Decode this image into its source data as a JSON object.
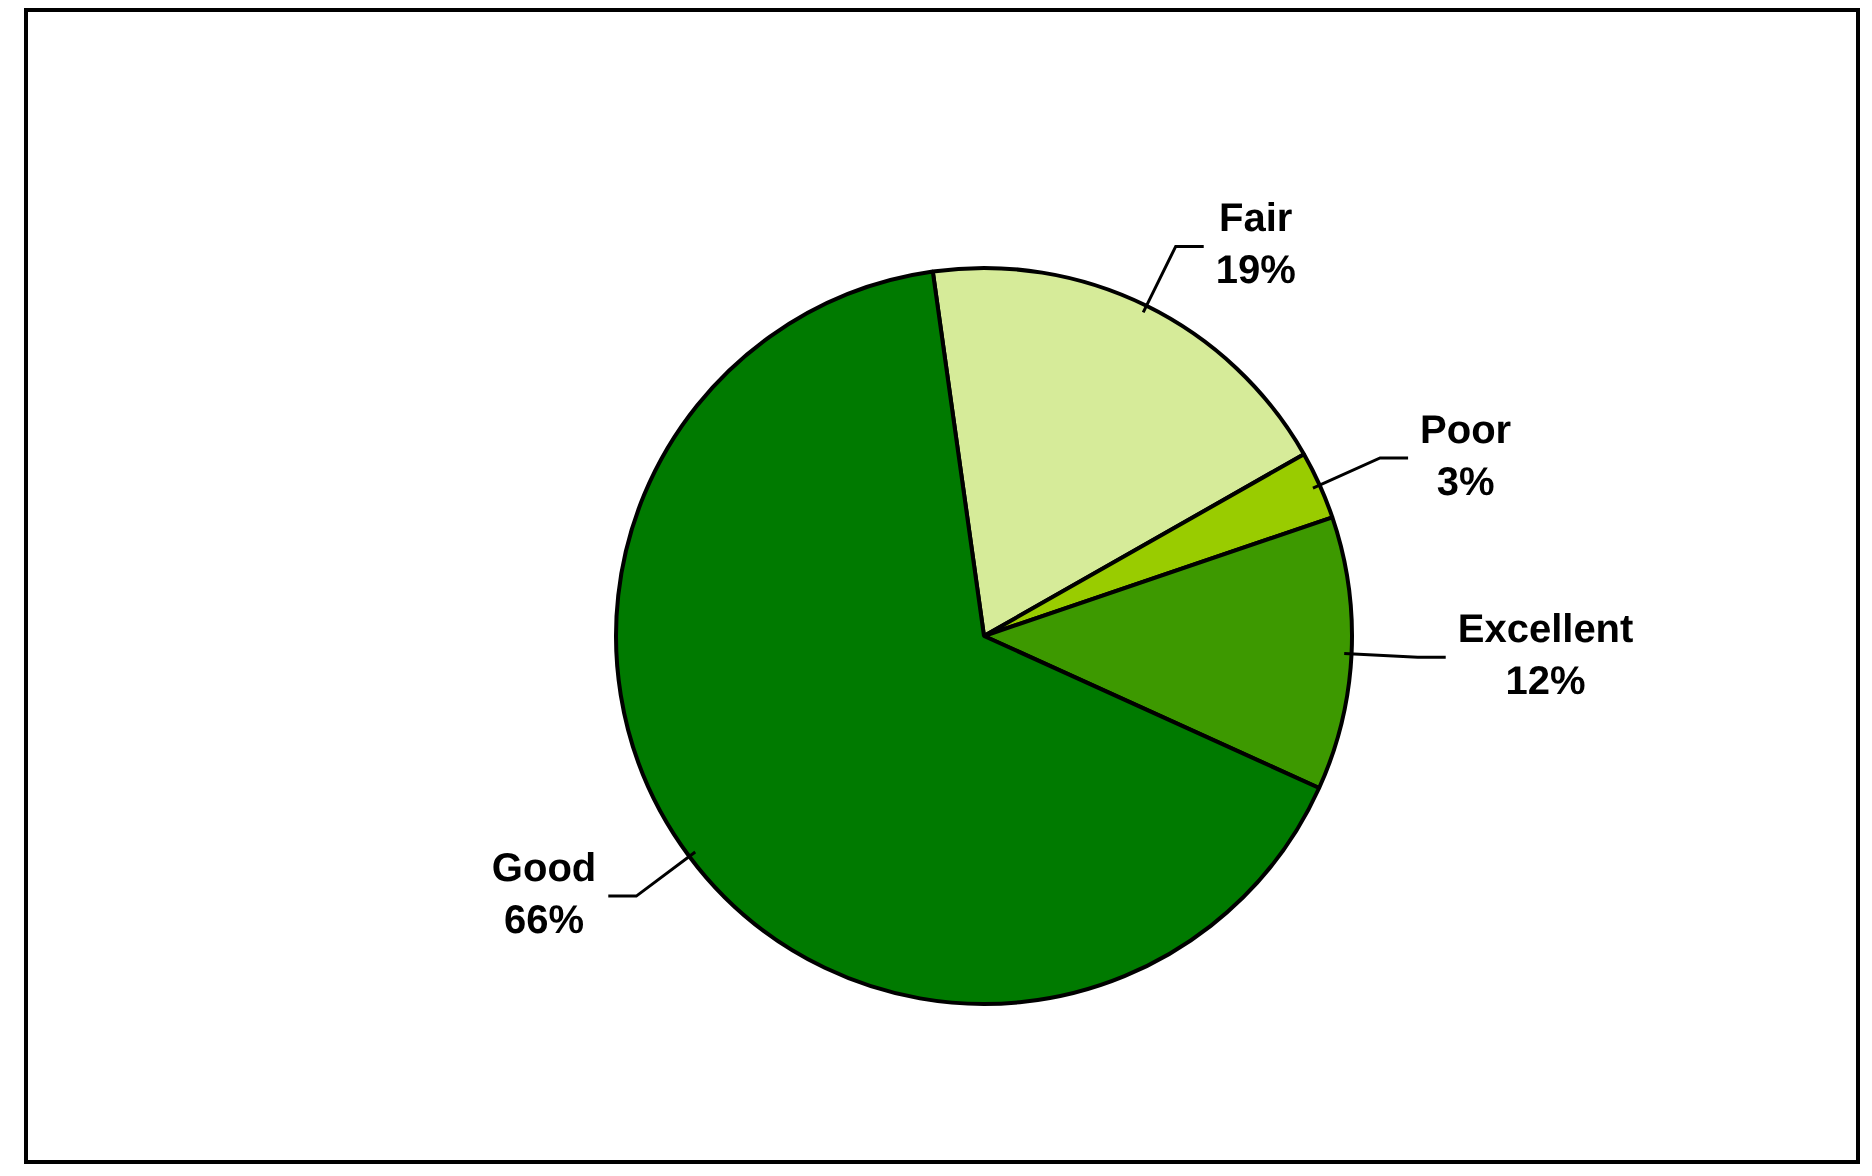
{
  "chart_data": {
    "type": "pie",
    "categories": [
      "Fair",
      "Poor",
      "Excellent",
      "Good"
    ],
    "values": [
      19,
      3,
      12,
      66
    ],
    "value_labels": [
      "19%",
      "3%",
      "12%",
      "66%"
    ],
    "colors": [
      "#d6eb99",
      "#99cc00",
      "#3d9900",
      "#007a00"
    ]
  }
}
